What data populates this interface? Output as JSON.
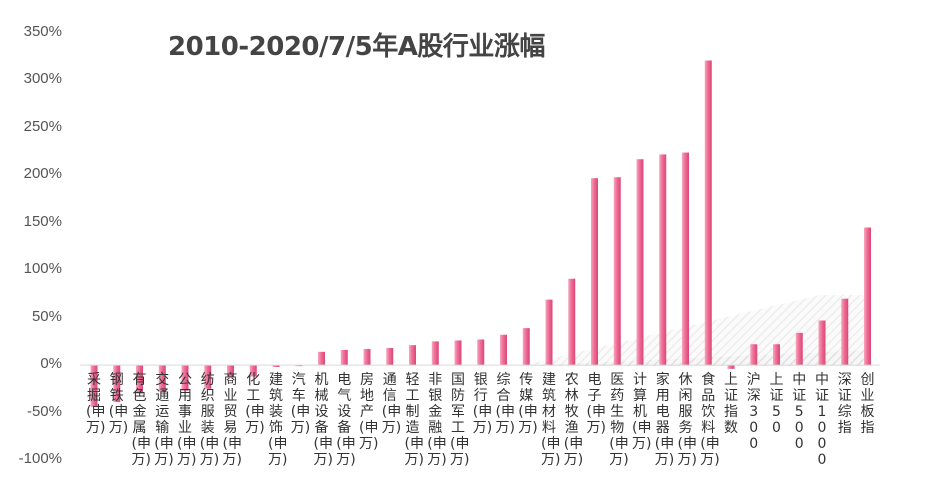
{
  "chart_data": {
    "type": "bar",
    "title": "2010-2020/7/5年A股行业涨幅",
    "xlabel": "",
    "ylabel": "",
    "ylim": [
      -100,
      350
    ],
    "yticks": [
      "350%",
      "300%",
      "250%",
      "200%",
      "150%",
      "100%",
      "50%",
      "0%",
      "-50%",
      "-100%"
    ],
    "grid": false,
    "bar_color": "#ef6d96",
    "categories": [
      "采掘(申万)",
      "钢铁(申万)",
      "有色金属(申万)",
      "交通运输(申万)",
      "公用事业(申万)",
      "纺织服装(申万)",
      "商业贸易(申万)",
      "化工(申万)",
      "建筑装饰(申万)",
      "汽车(申万)",
      "机械设备(申万)",
      "电气设备(申万)",
      "房地产(申万)",
      "通信(申万)",
      "轻工制造(申万)",
      "非银金融(申万)",
      "国防军工(申万)",
      "银行(申万)",
      "综合(申万)",
      "传媒(申万)",
      "建筑材料(申万)",
      "农林牧渔(申万)",
      "电子(申万)",
      "医药生物(申万)",
      "计算机(申万)",
      "家用电器(申万)",
      "休闲服务(申万)",
      "食品饮料(申万)",
      "上证指数",
      "沪深300",
      "上证50",
      "中证500",
      "中证1000",
      "深证综指",
      "创业板指"
    ],
    "values": [
      -44,
      -39,
      -30,
      -28,
      -27,
      -25,
      -13,
      -12,
      -2,
      -1,
      14,
      16,
      17,
      18,
      21,
      25,
      26,
      27,
      32,
      39,
      69,
      91,
      197,
      198,
      217,
      222,
      224,
      321,
      -4,
      22,
      22,
      34,
      47,
      70,
      145
    ]
  }
}
